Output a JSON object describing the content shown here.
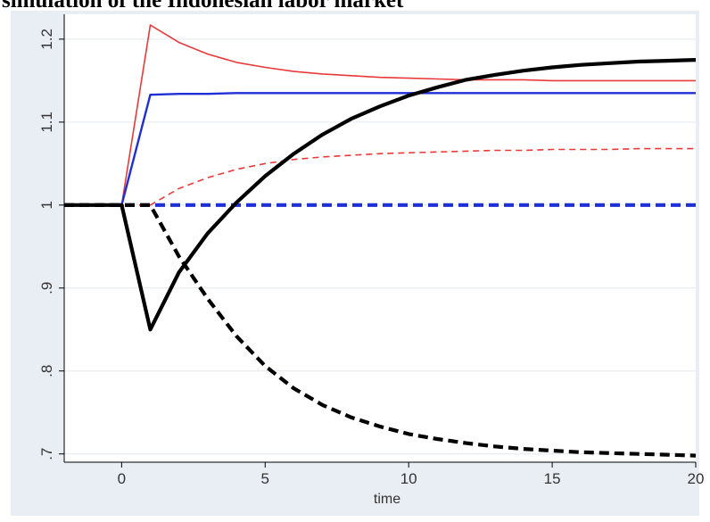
{
  "page": {
    "title": "simulation of the Indonesian labor market"
  },
  "chart_data": {
    "type": "line",
    "title": "simulation of the Indonesian labor market",
    "xlabel": "time",
    "ylabel": "",
    "xlim": [
      -2,
      20
    ],
    "ylim": [
      0.69,
      1.23
    ],
    "xticks": [
      0,
      5,
      10,
      15,
      20
    ],
    "xtick_labels": [
      "0",
      "5",
      "10",
      "15",
      "20"
    ],
    "yticks": [
      0.7,
      0.8,
      0.9,
      1.0,
      1.1,
      1.2
    ],
    "ytick_labels": [
      ".7",
      ".8",
      ".9",
      "1",
      "1.1",
      "1.2"
    ],
    "grid": true,
    "colors": {
      "outer_background": "#e8eef4",
      "plot_background": "#ffffff",
      "grid": "#e4e9ee",
      "red": "#e83a3a",
      "blue": "#1f2fd6",
      "black": "#000000"
    },
    "series": [
      {
        "color": "#e83a3a",
        "style": "solid",
        "width": "thin",
        "x": [
          -2,
          0,
          1,
          2,
          3,
          4,
          5,
          6,
          7,
          8,
          9,
          10,
          11,
          12,
          13,
          14,
          15,
          16,
          17,
          18,
          19,
          20
        ],
        "y": [
          1.0,
          1.0,
          1.217,
          1.196,
          1.182,
          1.172,
          1.166,
          1.161,
          1.158,
          1.156,
          1.154,
          1.153,
          1.152,
          1.151,
          1.151,
          1.151,
          1.15,
          1.15,
          1.15,
          1.15,
          1.15,
          1.15
        ]
      },
      {
        "color": "#1f2fd6",
        "style": "solid",
        "width": "medium",
        "x": [
          -2,
          0,
          1,
          2,
          3,
          4,
          5,
          6,
          7,
          8,
          9,
          10,
          11,
          12,
          13,
          14,
          15,
          16,
          17,
          18,
          19,
          20
        ],
        "y": [
          1.0,
          1.0,
          1.133,
          1.134,
          1.134,
          1.135,
          1.135,
          1.135,
          1.135,
          1.135,
          1.135,
          1.135,
          1.135,
          1.135,
          1.135,
          1.135,
          1.135,
          1.135,
          1.135,
          1.135,
          1.135,
          1.135
        ]
      },
      {
        "color": "#e83a3a",
        "style": "dashed",
        "width": "thin",
        "x": [
          -2,
          0,
          1,
          2,
          3,
          4,
          5,
          6,
          7,
          8,
          9,
          10,
          11,
          12,
          13,
          14,
          15,
          16,
          17,
          18,
          19,
          20
        ],
        "y": [
          1.0,
          1.0,
          1.0,
          1.02,
          1.033,
          1.043,
          1.05,
          1.055,
          1.058,
          1.06,
          1.062,
          1.063,
          1.064,
          1.065,
          1.066,
          1.066,
          1.067,
          1.067,
          1.067,
          1.068,
          1.068,
          1.068
        ]
      },
      {
        "color": "#1f2fd6",
        "style": "dashed",
        "width": "thick",
        "x": [
          -2,
          0,
          1,
          2,
          3,
          4,
          5,
          6,
          7,
          8,
          9,
          10,
          11,
          12,
          13,
          14,
          15,
          16,
          17,
          18,
          19,
          20
        ],
        "y": [
          1.0,
          1.0,
          1.0,
          1.0,
          1.0,
          1.0,
          1.0,
          1.0,
          1.0,
          1.0,
          1.0,
          1.0,
          1.0,
          1.0,
          1.0,
          1.0,
          1.0,
          1.0,
          1.0,
          1.0,
          1.0,
          1.0
        ]
      },
      {
        "color": "#000000",
        "style": "solid",
        "width": "thick",
        "x": [
          -2,
          0,
          1,
          2,
          3,
          4,
          5,
          6,
          7,
          8,
          9,
          10,
          11,
          12,
          13,
          14,
          15,
          16,
          17,
          18,
          19,
          20
        ],
        "y": [
          1.0,
          1.0,
          0.85,
          0.919,
          0.966,
          1.003,
          1.035,
          1.062,
          1.085,
          1.104,
          1.119,
          1.132,
          1.142,
          1.151,
          1.157,
          1.162,
          1.166,
          1.169,
          1.171,
          1.173,
          1.174,
          1.175
        ]
      },
      {
        "color": "#000000",
        "style": "dashed",
        "width": "thick",
        "x": [
          -2,
          0,
          1,
          2,
          3,
          4,
          5,
          6,
          7,
          8,
          9,
          10,
          11,
          12,
          13,
          14,
          15,
          16,
          17,
          18,
          19,
          20
        ],
        "y": [
          1.0,
          1.0,
          1.0,
          0.938,
          0.887,
          0.842,
          0.806,
          0.779,
          0.759,
          0.744,
          0.733,
          0.724,
          0.718,
          0.713,
          0.709,
          0.706,
          0.704,
          0.702,
          0.701,
          0.7,
          0.699,
          0.698
        ]
      }
    ]
  }
}
